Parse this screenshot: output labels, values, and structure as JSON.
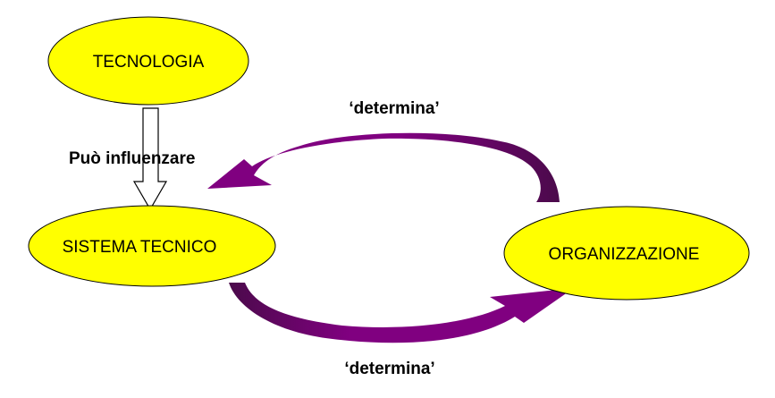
{
  "nodes": {
    "tecnologia": {
      "label": "TECNOLOGIA"
    },
    "sistema_tecnico": {
      "label": "SISTEMA TECNICO"
    },
    "organizzazione": {
      "label": "ORGANIZZAZIONE"
    }
  },
  "edges": {
    "influence": {
      "label": "Può influenzare"
    },
    "determina_top": {
      "label": "‘determina’"
    },
    "determina_bottom": {
      "label": "‘determina’"
    }
  },
  "colors": {
    "node_fill": "#ffff00",
    "node_stroke": "#000000",
    "arrow_fill": "#800080",
    "arrow_shade": "#4b0a4b",
    "hollow_arrow_fill": "#ffffff"
  }
}
